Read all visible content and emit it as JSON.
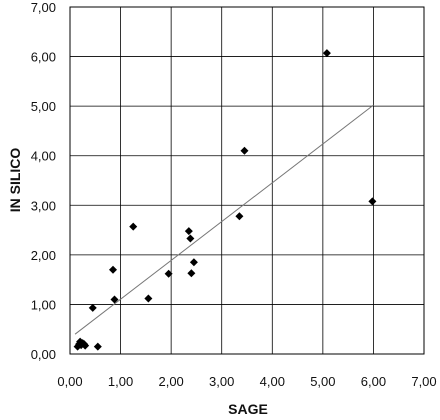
{
  "chart_data": {
    "type": "scatter",
    "title": "",
    "xlabel": "SAGE",
    "ylabel": "IN SILICO",
    "xlim": [
      0,
      7
    ],
    "ylim": [
      0,
      7
    ],
    "grid": true,
    "legend": "none",
    "xticks": [
      0,
      1,
      2,
      3,
      4,
      5,
      6,
      7
    ],
    "yticks": [
      0,
      1,
      2,
      3,
      4,
      5,
      6,
      7
    ],
    "xtick_labels": [
      "0,00",
      "1,00",
      "2,00",
      "3,00",
      "4,00",
      "5,00",
      "6,00",
      "7,00"
    ],
    "ytick_labels": [
      "0,00",
      "1,00",
      "2,00",
      "3,00",
      "4,00",
      "5,00",
      "6,00",
      "7,00"
    ],
    "marker": "diamond",
    "marker_color": "#000000",
    "trendline_color": "#777777",
    "series": [
      {
        "x": [
          0.15,
          0.18,
          0.2,
          0.22,
          0.25,
          0.28,
          0.3,
          0.45,
          0.55,
          0.85,
          0.88,
          1.25,
          1.55,
          1.95,
          2.35,
          2.38,
          2.4,
          2.45,
          3.35,
          3.45,
          5.08,
          5.98
        ],
        "y": [
          0.15,
          0.2,
          0.25,
          0.18,
          0.22,
          0.2,
          0.17,
          0.93,
          0.15,
          1.7,
          1.1,
          2.57,
          1.12,
          1.62,
          2.48,
          2.33,
          1.63,
          1.85,
          2.78,
          4.1,
          6.07,
          3.08
        ]
      }
    ],
    "trendline": {
      "x": [
        0.1,
        6.0
      ],
      "y": [
        0.4,
        5.02
      ]
    }
  }
}
